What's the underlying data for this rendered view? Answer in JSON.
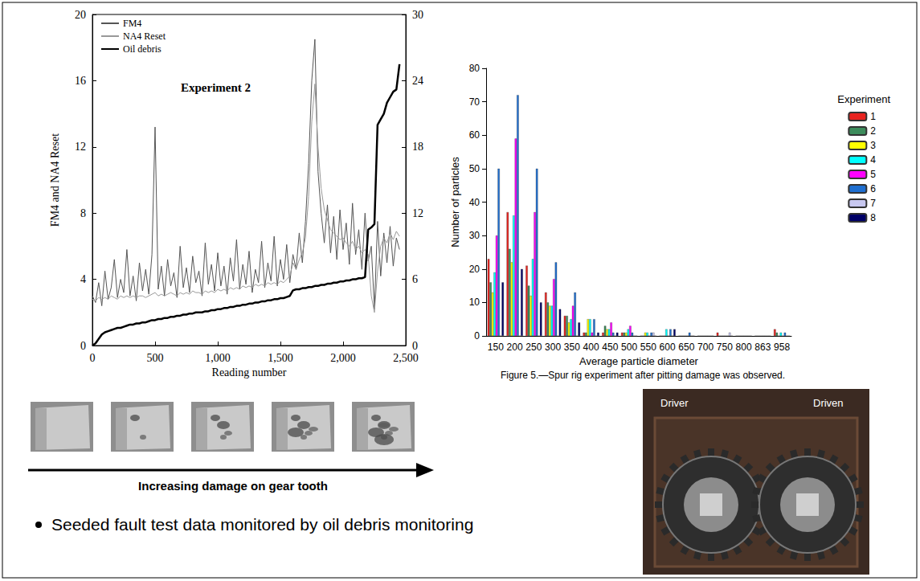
{
  "chart_data": [
    {
      "type": "line",
      "annotation": "Experiment 2",
      "x_label": "Reading number",
      "y_label": "FM4 and NA4 Reset",
      "legend": "top-left",
      "grid": false,
      "xlim": [
        0,
        2500
      ],
      "xticks": [
        0,
        500,
        1000,
        1500,
        2000,
        2500
      ],
      "ylim": [
        0,
        20
      ],
      "yticks": [
        0,
        4,
        8,
        12,
        16,
        20
      ],
      "y2lim": [
        0,
        30
      ],
      "y2ticks": [
        0,
        6,
        12,
        18,
        24,
        30
      ],
      "x": [
        0,
        25,
        50,
        75,
        100,
        125,
        150,
        175,
        200,
        225,
        250,
        275,
        300,
        325,
        350,
        375,
        400,
        425,
        450,
        475,
        500,
        525,
        550,
        575,
        600,
        625,
        650,
        675,
        700,
        725,
        750,
        775,
        800,
        825,
        850,
        875,
        900,
        925,
        950,
        975,
        1000,
        1025,
        1050,
        1075,
        1100,
        1125,
        1150,
        1175,
        1200,
        1225,
        1250,
        1275,
        1300,
        1325,
        1350,
        1375,
        1400,
        1425,
        1450,
        1475,
        1500,
        1525,
        1550,
        1575,
        1600,
        1625,
        1650,
        1675,
        1700,
        1725,
        1750,
        1775,
        1800,
        1825,
        1850,
        1875,
        1900,
        1925,
        1950,
        1975,
        2000,
        2025,
        2050,
        2075,
        2100,
        2125,
        2150,
        2175,
        2200,
        2225,
        2250,
        2275,
        2300,
        2325,
        2350,
        2375,
        2400,
        2425,
        2450
      ],
      "series": [
        {
          "name": "FM4",
          "color": "#555555",
          "line_style": "solid",
          "values": [
            3.0,
            2.6,
            3.8,
            2.4,
            4.5,
            2.8,
            3.5,
            5.2,
            2.9,
            4.0,
            3.2,
            5.8,
            3.0,
            4.2,
            2.7,
            5.0,
            3.3,
            4.6,
            3.1,
            5.5,
            13.2,
            3.4,
            4.8,
            3.0,
            5.2,
            3.6,
            4.4,
            2.9,
            6.0,
            3.5,
            4.7,
            3.2,
            5.4,
            3.8,
            4.5,
            3.0,
            6.2,
            3.7,
            4.9,
            3.3,
            5.6,
            3.6,
            4.8,
            3.1,
            5.3,
            3.9,
            6.4,
            3.4,
            4.9,
            3.7,
            5.7,
            3.2,
            4.6,
            3.8,
            6.3,
            3.5,
            5.0,
            3.9,
            6.6,
            3.6,
            5.2,
            4.0,
            6.1,
            3.8,
            5.5,
            4.6,
            6.8,
            5.0,
            7.5,
            11.0,
            16.0,
            18.5,
            10.5,
            8.0,
            6.2,
            8.5,
            5.6,
            7.8,
            5.2,
            8.2,
            5.8,
            7.4,
            4.9,
            8.6,
            5.5,
            7.0,
            4.6,
            8.0,
            5.1,
            6.0,
            2.2,
            7.5,
            4.2,
            6.8,
            5.0,
            7.2,
            4.8,
            6.5,
            5.8
          ]
        },
        {
          "name": "NA4 Reset",
          "color": "#999999",
          "line_style": "solid",
          "values": [
            2.8,
            2.7,
            2.9,
            2.8,
            2.9,
            2.8,
            3.0,
            2.9,
            2.8,
            3.0,
            2.9,
            3.0,
            2.9,
            3.0,
            2.9,
            3.0,
            3.0,
            2.9,
            3.0,
            3.1,
            3.2,
            3.0,
            3.1,
            3.0,
            3.1,
            3.2,
            3.1,
            3.0,
            3.2,
            3.1,
            3.2,
            3.1,
            3.3,
            3.2,
            3.2,
            3.1,
            3.3,
            3.2,
            3.3,
            3.2,
            3.4,
            3.3,
            3.4,
            3.3,
            3.5,
            3.4,
            3.5,
            3.4,
            3.6,
            3.5,
            3.6,
            3.5,
            3.7,
            3.6,
            3.7,
            3.6,
            3.8,
            3.7,
            3.8,
            3.7,
            3.9,
            3.8,
            4.0,
            4.2,
            5.0,
            4.6,
            5.2,
            5.6,
            6.5,
            9.0,
            13.5,
            15.8,
            12.0,
            9.5,
            8.2,
            7.6,
            7.0,
            6.8,
            6.6,
            6.4,
            6.5,
            6.2,
            6.0,
            6.3,
            5.8,
            6.0,
            5.6,
            5.8,
            5.5,
            3.0,
            2.0,
            4.5,
            6.0,
            6.5,
            6.2,
            6.8,
            6.4,
            6.9,
            6.6
          ]
        },
        {
          "name": "Oil debris",
          "color": "#000000",
          "line_style": "solid",
          "axis": "y2",
          "values": [
            0,
            0.2,
            0.6,
            1.0,
            1.2,
            1.3,
            1.4,
            1.5,
            1.6,
            1.6,
            1.7,
            1.8,
            1.9,
            1.9,
            2.0,
            2.0,
            2.1,
            2.1,
            2.2,
            2.3,
            2.3,
            2.4,
            2.4,
            2.5,
            2.5,
            2.6,
            2.6,
            2.7,
            2.7,
            2.8,
            2.8,
            2.9,
            2.9,
            3.0,
            3.0,
            3.0,
            3.1,
            3.1,
            3.2,
            3.2,
            3.3,
            3.3,
            3.4,
            3.4,
            3.5,
            3.5,
            3.6,
            3.6,
            3.7,
            3.7,
            3.8,
            3.8,
            3.9,
            3.9,
            4.0,
            4.0,
            4.1,
            4.1,
            4.2,
            4.2,
            4.3,
            4.3,
            4.4,
            4.5,
            5.0,
            5.1,
            5.1,
            5.2,
            5.2,
            5.3,
            5.3,
            5.4,
            5.4,
            5.5,
            5.5,
            5.6,
            5.6,
            5.7,
            5.7,
            5.8,
            5.8,
            5.9,
            5.9,
            6.0,
            6.0,
            6.1,
            6.1,
            6.2,
            10.5,
            10.7,
            11.0,
            20.0,
            20.5,
            21.0,
            22.0,
            22.5,
            23.0,
            23.2,
            25.5
          ]
        }
      ]
    },
    {
      "type": "bar",
      "caption": "Figure 5.—Spur rig experiment after pitting damage was observed.",
      "x_label": "Average particle diameter",
      "y_label": "Number of particles",
      "legend": "right",
      "legend_title": "Experiment",
      "grid": false,
      "ylim": [
        0,
        80
      ],
      "yticks": [
        0,
        10,
        20,
        30,
        40,
        50,
        60,
        70,
        80
      ],
      "categories": [
        "150",
        "200",
        "250",
        "300",
        "350",
        "400",
        "450",
        "500",
        "550",
        "600",
        "650",
        "700",
        "750",
        "800",
        "863",
        "958"
      ],
      "series": [
        {
          "name": "1",
          "color": "#e8231f",
          "values": [
            23,
            37,
            21,
            13,
            6,
            1,
            1,
            1,
            0,
            0,
            0,
            0,
            1,
            0,
            0,
            2
          ]
        },
        {
          "name": "2",
          "color": "#3d8c5c",
          "values": [
            16,
            26,
            15,
            10,
            6,
            1,
            3,
            1,
            0,
            0,
            0,
            0,
            0,
            0,
            0,
            1
          ]
        },
        {
          "name": "3",
          "color": "#ffff00",
          "values": [
            13,
            22,
            12,
            9,
            4,
            5,
            2,
            1,
            1,
            0,
            0,
            0,
            0,
            0,
            0,
            0
          ]
        },
        {
          "name": "4",
          "color": "#00ffff",
          "values": [
            19,
            36,
            23,
            9,
            5,
            5,
            2,
            2,
            1,
            2,
            0,
            0,
            0,
            0,
            0,
            1
          ]
        },
        {
          "name": "5",
          "color": "#ff00ff",
          "values": [
            30,
            59,
            37,
            17,
            9,
            1,
            4,
            3,
            0,
            0,
            0,
            0,
            0,
            0,
            0,
            0
          ]
        },
        {
          "name": "6",
          "color": "#1f6fd0",
          "values": [
            50,
            72,
            50,
            22,
            13,
            5,
            1,
            1,
            1,
            2,
            1,
            0,
            0,
            0,
            0,
            1
          ]
        },
        {
          "name": "7",
          "color": "#c8c8f0",
          "values": [
            0,
            0,
            0,
            0,
            0,
            0,
            0,
            0,
            1,
            0,
            0,
            0,
            1,
            0,
            0,
            0
          ]
        },
        {
          "name": "8",
          "color": "#000066",
          "values": [
            16,
            20,
            10,
            8,
            4,
            1,
            1,
            0,
            0,
            2,
            0,
            0,
            0,
            0,
            0,
            0
          ]
        }
      ]
    }
  ],
  "slide": {
    "image_caption": "Increasing damage on gear tooth",
    "bullet": "Seeded fault test data monitored by oil debris monitoring",
    "photo_labels": [
      "Driver",
      "Driven"
    ]
  }
}
